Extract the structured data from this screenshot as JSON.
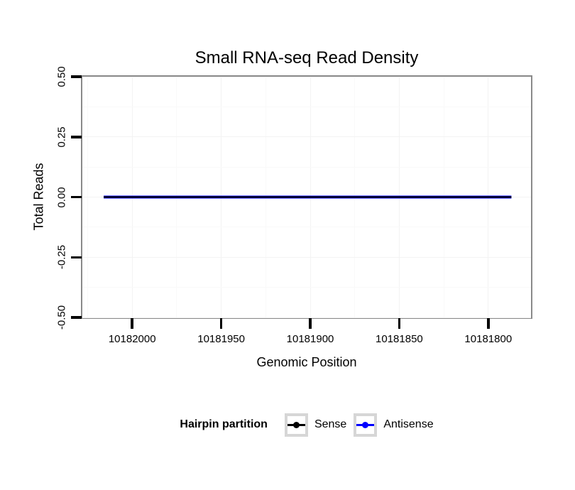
{
  "chart_data": {
    "type": "line",
    "title": "Small RNA-seq Read Density",
    "xlabel": "Genomic Position",
    "ylabel": "Total Reads",
    "x_axis": {
      "reversed": true,
      "lim": [
        10182028,
        10181776
      ],
      "tick_step": 50,
      "ticks": [
        {
          "value": 10182000,
          "label": "10182000"
        },
        {
          "value": 10181950,
          "label": "10181950"
        },
        {
          "value": 10181900,
          "label": "10181900"
        },
        {
          "value": 10181850,
          "label": "10181850"
        },
        {
          "value": 10181800,
          "label": "10181800"
        }
      ]
    },
    "y_axis": {
      "lim": [
        -0.5,
        0.5
      ],
      "tick_step": 0.25,
      "ticks": [
        {
          "value": 0.5,
          "label": "0.50"
        },
        {
          "value": 0.25,
          "label": "0.25"
        },
        {
          "value": 0.0,
          "label": "0.00"
        },
        {
          "value": -0.25,
          "label": "-0.25"
        },
        {
          "value": -0.5,
          "label": "-0.50"
        }
      ]
    },
    "grid": {
      "major": true,
      "minor": true
    },
    "series": [
      {
        "name": "Sense",
        "color": "#000000",
        "line_width": 2.2,
        "x": [
          10182016,
          10181787
        ],
        "y": [
          0,
          0
        ]
      },
      {
        "name": "Antisense",
        "color": "#0000ff",
        "line_width": 4,
        "x": [
          10182016,
          10181787
        ],
        "y": [
          0,
          0
        ]
      }
    ],
    "legend": {
      "title": "Hairpin partition",
      "position": "bottom",
      "entries": [
        {
          "label": "Sense",
          "color": "#000000"
        },
        {
          "label": "Antisense",
          "color": "#0000ff"
        }
      ]
    }
  },
  "colors": {
    "background": "#ffffff",
    "panel_border": "#8a8a8a",
    "grid_major": "#f3f3f3",
    "grid_minor": "#f9f9f9",
    "tick_mark": "#000000",
    "legend_key_border": "#d6d6d6",
    "text": "#000000"
  }
}
